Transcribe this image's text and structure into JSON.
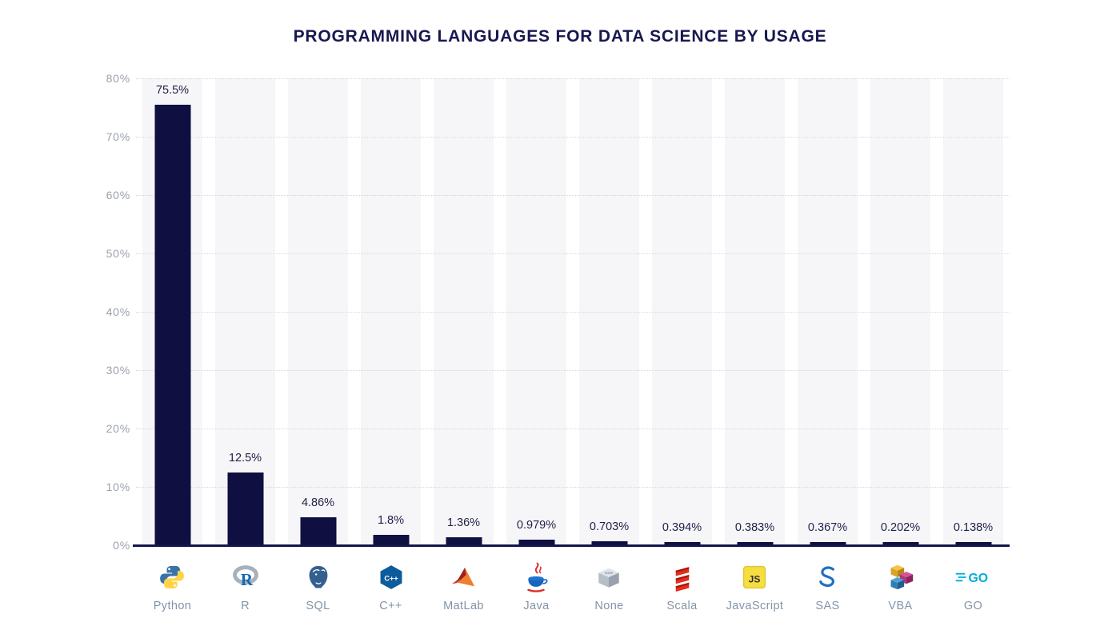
{
  "chart_data": {
    "type": "bar",
    "title": "PROGRAMMING LANGUAGES FOR DATA SCIENCE BY USAGE",
    "categories": [
      "Python",
      "R",
      "SQL",
      "C++",
      "MatLab",
      "Java",
      "None",
      "Scala",
      "JavaScript",
      "SAS",
      "VBA",
      "GO"
    ],
    "values": [
      75.5,
      12.5,
      4.86,
      1.8,
      1.36,
      0.979,
      0.703,
      0.394,
      0.383,
      0.367,
      0.202,
      0.138
    ],
    "value_labels": [
      "75.5%",
      "12.5%",
      "4.86%",
      "1.8%",
      "1.36%",
      "0.979%",
      "0.703%",
      "0.394%",
      "0.383%",
      "0.367%",
      "0.202%",
      "0.138%"
    ],
    "icons": [
      "python-icon",
      "r-icon",
      "postgresql-elephant-icon",
      "cpp-icon",
      "matlab-icon",
      "java-icon",
      "none-cube-icon",
      "scala-icon",
      "javascript-icon",
      "sas-icon",
      "vba-cubes-icon",
      "go-icon"
    ],
    "xlabel": "",
    "ylabel": "",
    "ylim": [
      0,
      80
    ],
    "yticks": [
      "0%",
      "10%",
      "20%",
      "30%",
      "40%",
      "50%",
      "60%",
      "70%",
      "80%"
    ],
    "grid": "horizontal-dotted",
    "legend": "none",
    "bar_color": "#0f0f41",
    "band_color": "#f6f6f8",
    "title_color": "#181850",
    "axis_color": "#15154d",
    "tick_color": "#9aa0ac",
    "category_label_color": "#8294a8"
  }
}
